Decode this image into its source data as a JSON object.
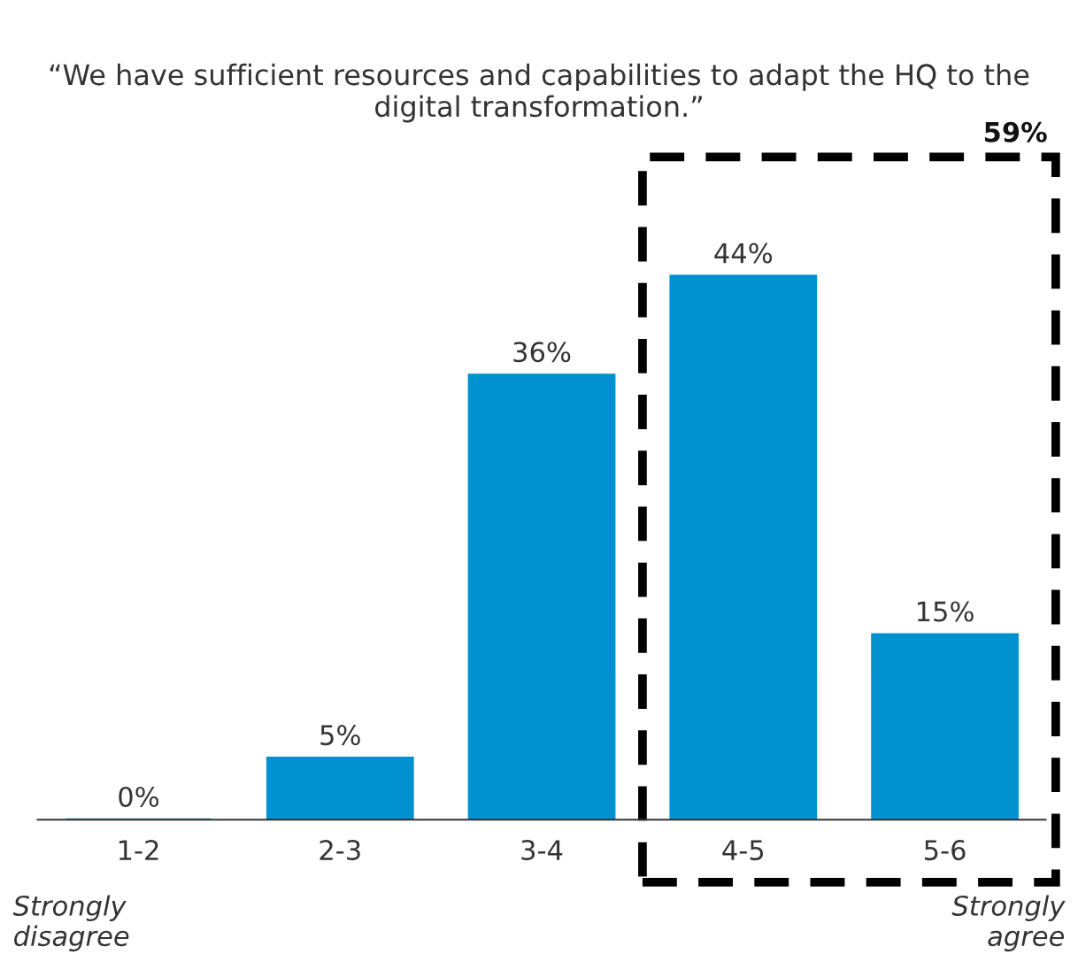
{
  "chart_data": {
    "type": "bar",
    "title": "“We have sufficient resources and capabilities to adapt the HQ to the digital transformation.”",
    "categories": [
      "1-2",
      "2-3",
      "3-4",
      "4-5",
      "5-6"
    ],
    "values": [
      0,
      5,
      36,
      44,
      15
    ],
    "value_labels": [
      "0%",
      "5%",
      "36%",
      "44%",
      "15%"
    ],
    "color": "#0091d0",
    "annotations": [
      "59%",
      "Strongly disagree",
      "Strongly agree"
    ]
  }
}
